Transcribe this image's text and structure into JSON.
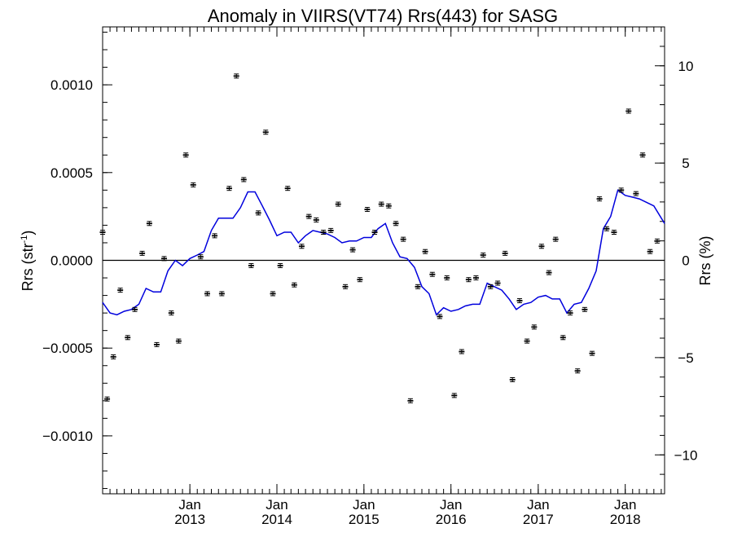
{
  "chart_data": {
    "type": "scatter",
    "title": "Anomaly in VIIRS(VT74) Rrs(443) for SASG",
    "ylabel_left": "Rrs (str",
    "ylabel_left_sup": "-1",
    "ylabel_left_end": ")",
    "ylabel_right": "Rrs (%)",
    "xlim": [
      "2012-01-01",
      "2018-06-15"
    ],
    "ylim_left": [
      -0.00133,
      0.00133
    ],
    "ylim_right": [
      -12,
      12
    ],
    "yticks_left": [
      {
        "value": 0.001,
        "label": "0.0010"
      },
      {
        "value": 0.0005,
        "label": "0.0005"
      },
      {
        "value": 0,
        "label": "0.0000"
      },
      {
        "value": -0.0005,
        "label": "−0.0005"
      },
      {
        "value": -0.001,
        "label": "−0.0010"
      }
    ],
    "yticks_right": [
      {
        "value": 10,
        "label": "10"
      },
      {
        "value": 5,
        "label": "5"
      },
      {
        "value": 0,
        "label": "0"
      },
      {
        "value": -5,
        "label": "−5"
      },
      {
        "value": -10,
        "label": "−10"
      }
    ],
    "xticks": [
      {
        "date": "2013-01-01",
        "label1": "Jan",
        "label2": "2013"
      },
      {
        "date": "2014-01-01",
        "label1": "Jan",
        "label2": "2014"
      },
      {
        "date": "2015-01-01",
        "label1": "Jan",
        "label2": "2015"
      },
      {
        "date": "2016-01-01",
        "label1": "Jan",
        "label2": "2016"
      },
      {
        "date": "2017-01-01",
        "label1": "Jan",
        "label2": "2017"
      },
      {
        "date": "2018-01-01",
        "label1": "Jan",
        "label2": "2018"
      }
    ],
    "zero_line": true,
    "grid": false,
    "series": [
      {
        "kind": "points_with_error_bars",
        "color": "#000000",
        "points": [
          [
            "2012-01-01",
            0.00016
          ],
          [
            "2012-01-20",
            -0.00079
          ],
          [
            "2012-02-15",
            -0.00055
          ],
          [
            "2012-03-15",
            -0.00017
          ],
          [
            "2012-04-15",
            -0.00044
          ],
          [
            "2012-05-15",
            -0.00028
          ],
          [
            "2012-06-15",
            4e-05
          ],
          [
            "2012-07-15",
            0.00021
          ],
          [
            "2012-08-15",
            -0.00048
          ],
          [
            "2012-09-15",
            1e-05
          ],
          [
            "2012-10-15",
            -0.0003
          ],
          [
            "2012-11-15",
            -0.00046
          ],
          [
            "2012-12-15",
            0.0006
          ],
          [
            "2013-01-15",
            0.00043
          ],
          [
            "2013-02-15",
            2e-05
          ],
          [
            "2013-03-15",
            -0.00019
          ],
          [
            "2013-04-15",
            0.00014
          ],
          [
            "2013-05-15",
            -0.00019
          ],
          [
            "2013-06-15",
            0.00041
          ],
          [
            "2013-07-15",
            0.00105
          ],
          [
            "2013-08-15",
            0.00046
          ],
          [
            "2013-09-15",
            -3e-05
          ],
          [
            "2013-10-15",
            0.00027
          ],
          [
            "2013-11-15",
            0.00073
          ],
          [
            "2013-12-15",
            -0.00019
          ],
          [
            "2014-01-15",
            -3e-05
          ],
          [
            "2014-02-15",
            0.00041
          ],
          [
            "2014-03-15",
            -0.00014
          ],
          [
            "2014-04-15",
            8e-05
          ],
          [
            "2014-05-15",
            0.00025
          ],
          [
            "2014-06-15",
            0.00023
          ],
          [
            "2014-07-15",
            0.00016
          ],
          [
            "2014-08-15",
            0.00017
          ],
          [
            "2014-09-15",
            0.00032
          ],
          [
            "2014-10-15",
            -0.00015
          ],
          [
            "2014-11-15",
            6e-05
          ],
          [
            "2014-12-15",
            -0.00011
          ],
          [
            "2015-01-15",
            0.00029
          ],
          [
            "2015-02-15",
            0.00016
          ],
          [
            "2015-03-15",
            0.00032
          ],
          [
            "2015-04-15",
            0.00031
          ],
          [
            "2015-05-15",
            0.00021
          ],
          [
            "2015-06-15",
            0.00012
          ],
          [
            "2015-07-15",
            -0.0008
          ],
          [
            "2015-08-15",
            -0.00015
          ],
          [
            "2015-09-15",
            5e-05
          ],
          [
            "2015-10-15",
            -8e-05
          ],
          [
            "2015-11-15",
            -0.00032
          ],
          [
            "2015-12-15",
            -0.0001
          ],
          [
            "2016-01-15",
            -0.00077
          ],
          [
            "2016-02-15",
            -0.00052
          ],
          [
            "2016-03-15",
            -0.00011
          ],
          [
            "2016-04-15",
            -0.0001
          ],
          [
            "2016-05-15",
            3e-05
          ],
          [
            "2016-06-15",
            -0.00015
          ],
          [
            "2016-07-15",
            -0.00013
          ],
          [
            "2016-08-15",
            4e-05
          ],
          [
            "2016-09-15",
            -0.00068
          ],
          [
            "2016-10-15",
            -0.00023
          ],
          [
            "2016-11-15",
            -0.00046
          ],
          [
            "2016-12-15",
            -0.00038
          ],
          [
            "2017-01-15",
            8e-05
          ],
          [
            "2017-02-15",
            -7e-05
          ],
          [
            "2017-03-15",
            0.00012
          ],
          [
            "2017-04-15",
            -0.00044
          ],
          [
            "2017-05-15",
            -0.0003
          ],
          [
            "2017-06-15",
            -0.00063
          ],
          [
            "2017-07-15",
            -0.00028
          ],
          [
            "2017-08-15",
            -0.00053
          ],
          [
            "2017-09-15",
            0.00035
          ],
          [
            "2017-10-15",
            0.00018
          ],
          [
            "2017-11-15",
            0.00016
          ],
          [
            "2017-12-15",
            0.0004
          ],
          [
            "2018-01-15",
            0.00085
          ],
          [
            "2018-02-15",
            0.00038
          ],
          [
            "2018-03-15",
            0.0006
          ],
          [
            "2018-04-15",
            5e-05
          ],
          [
            "2018-05-15",
            0.00011
          ]
        ]
      },
      {
        "kind": "line",
        "color": "#0000dd",
        "points": [
          [
            "2012-01-01",
            -0.00024
          ],
          [
            "2012-02-01",
            -0.0003
          ],
          [
            "2012-03-01",
            -0.00031
          ],
          [
            "2012-04-01",
            -0.00029
          ],
          [
            "2012-05-01",
            -0.00028
          ],
          [
            "2012-06-01",
            -0.00025
          ],
          [
            "2012-07-01",
            -0.00016
          ],
          [
            "2012-08-01",
            -0.00018
          ],
          [
            "2012-09-01",
            -0.00018
          ],
          [
            "2012-10-01",
            -6e-05
          ],
          [
            "2012-11-01",
            0.0
          ],
          [
            "2012-12-01",
            -3e-05
          ],
          [
            "2013-01-01",
            1e-05
          ],
          [
            "2013-02-01",
            3e-05
          ],
          [
            "2013-03-01",
            5e-05
          ],
          [
            "2013-04-01",
            0.00017
          ],
          [
            "2013-05-01",
            0.00024
          ],
          [
            "2013-06-01",
            0.00024
          ],
          [
            "2013-07-01",
            0.00024
          ],
          [
            "2013-08-01",
            0.0003
          ],
          [
            "2013-09-01",
            0.00039
          ],
          [
            "2013-10-01",
            0.00039
          ],
          [
            "2013-11-01",
            0.00031
          ],
          [
            "2013-12-01",
            0.00023
          ],
          [
            "2014-01-01",
            0.00014
          ],
          [
            "2014-02-01",
            0.00016
          ],
          [
            "2014-03-01",
            0.00016
          ],
          [
            "2014-04-01",
            0.0001
          ],
          [
            "2014-05-01",
            0.00014
          ],
          [
            "2014-06-01",
            0.00017
          ],
          [
            "2014-07-01",
            0.00016
          ],
          [
            "2014-08-01",
            0.00015
          ],
          [
            "2014-09-01",
            0.00013
          ],
          [
            "2014-10-01",
            0.0001
          ],
          [
            "2014-11-01",
            0.00011
          ],
          [
            "2014-12-01",
            0.00011
          ],
          [
            "2015-01-01",
            0.00013
          ],
          [
            "2015-02-01",
            0.00013
          ],
          [
            "2015-03-01",
            0.00018
          ],
          [
            "2015-04-01",
            0.00021
          ],
          [
            "2015-05-01",
            0.0001
          ],
          [
            "2015-06-01",
            2e-05
          ],
          [
            "2015-07-01",
            1e-05
          ],
          [
            "2015-08-01",
            -4e-05
          ],
          [
            "2015-09-01",
            -0.00015
          ],
          [
            "2015-10-01",
            -0.00019
          ],
          [
            "2015-11-01",
            -0.00031
          ],
          [
            "2015-12-01",
            -0.00027
          ],
          [
            "2016-01-01",
            -0.00029
          ],
          [
            "2016-02-01",
            -0.00028
          ],
          [
            "2016-03-01",
            -0.00026
          ],
          [
            "2016-04-01",
            -0.00025
          ],
          [
            "2016-05-01",
            -0.00025
          ],
          [
            "2016-06-01",
            -0.00013
          ],
          [
            "2016-07-01",
            -0.00015
          ],
          [
            "2016-08-01",
            -0.00017
          ],
          [
            "2016-09-01",
            -0.00022
          ],
          [
            "2016-10-01",
            -0.00028
          ],
          [
            "2016-11-01",
            -0.00025
          ],
          [
            "2016-12-01",
            -0.00024
          ],
          [
            "2017-01-01",
            -0.00021
          ],
          [
            "2017-02-01",
            -0.0002
          ],
          [
            "2017-03-01",
            -0.00022
          ],
          [
            "2017-04-01",
            -0.00022
          ],
          [
            "2017-05-01",
            -0.0003
          ],
          [
            "2017-06-01",
            -0.00025
          ],
          [
            "2017-07-01",
            -0.00024
          ],
          [
            "2017-08-01",
            -0.00016
          ],
          [
            "2017-09-01",
            -6e-05
          ],
          [
            "2017-10-01",
            0.00018
          ],
          [
            "2017-11-01",
            0.00025
          ],
          [
            "2017-12-01",
            0.0004
          ],
          [
            "2018-01-01",
            0.00037
          ],
          [
            "2018-02-01",
            0.00036
          ],
          [
            "2018-03-01",
            0.00035
          ],
          [
            "2018-04-01",
            0.00033
          ],
          [
            "2018-05-01",
            0.00031
          ],
          [
            "2018-06-15",
            0.00021
          ]
        ]
      }
    ]
  }
}
